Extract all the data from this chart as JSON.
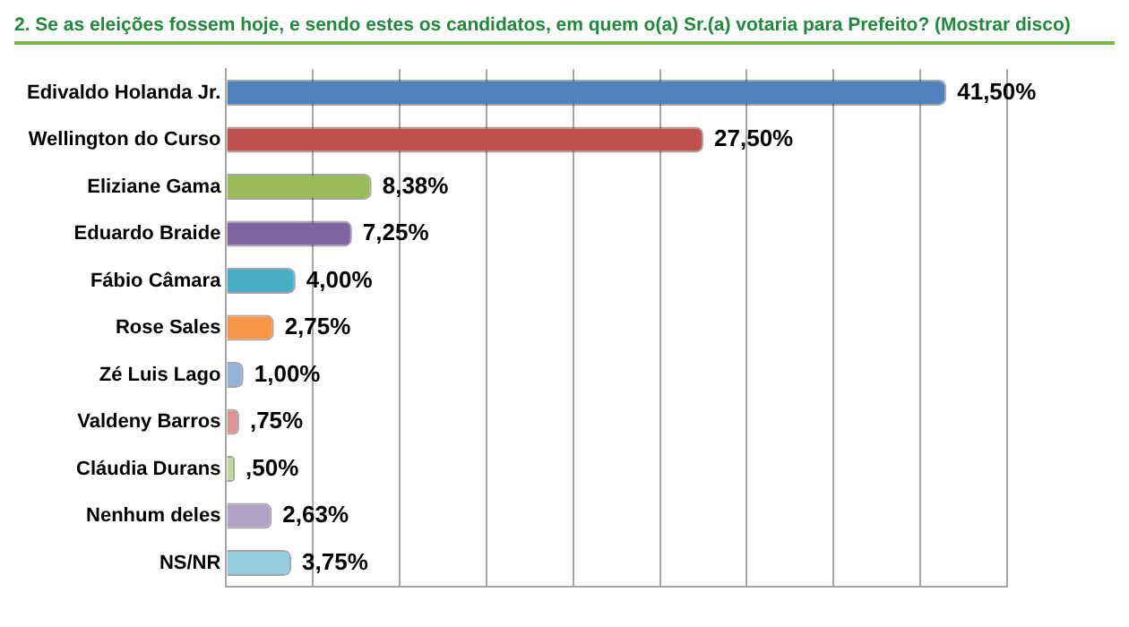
{
  "chart_data": {
    "type": "bar",
    "orientation": "horizontal",
    "title": "2. Se as eleições fossem hoje, e sendo estes os candidatos, em quem o(a) Sr.(a) votaria para Prefeito? (Mostrar disco)",
    "categories": [
      "Edivaldo Holanda Jr.",
      "Wellington do Curso",
      "Eliziane Gama",
      "Eduardo Braide",
      "Fábio Câmara",
      "Rose Sales",
      "Zé Luis Lago",
      "Valdeny Barros",
      "Cláudia Durans",
      "Nenhum deles",
      "NS/NR"
    ],
    "values": [
      41.5,
      27.5,
      8.38,
      7.25,
      4.0,
      2.75,
      1.0,
      0.75,
      0.5,
      2.63,
      3.75
    ],
    "value_labels": [
      "41,50%",
      "27,50%",
      "8,38%",
      "7,25%",
      "4,00%",
      "2,75%",
      "1,00%",
      ",75%",
      ",50%",
      "2,63%",
      "3,75%"
    ],
    "colors": [
      "#4f81bd",
      "#c0504d",
      "#9bbb59",
      "#8064a2",
      "#4bacc6",
      "#f79646",
      "#95b3d7",
      "#d99694",
      "#c3d69b",
      "#b3a2c7",
      "#93cddd"
    ],
    "xlim": [
      0,
      45
    ],
    "xticks": [
      {
        "value": 0,
        "label": null
      },
      {
        "value": 5,
        "label": null
      },
      {
        "value": 10,
        "label": null
      },
      {
        "value": 15,
        "label": null
      },
      {
        "value": 20,
        "label": null
      },
      {
        "value": 25,
        "label": null
      },
      {
        "value": 30,
        "label": null
      },
      {
        "value": 35,
        "label": null
      },
      {
        "value": 40,
        "label": null
      },
      {
        "value": 45,
        "label": null
      }
    ],
    "grid": "x",
    "tick_labels": "y",
    "legend": false
  }
}
